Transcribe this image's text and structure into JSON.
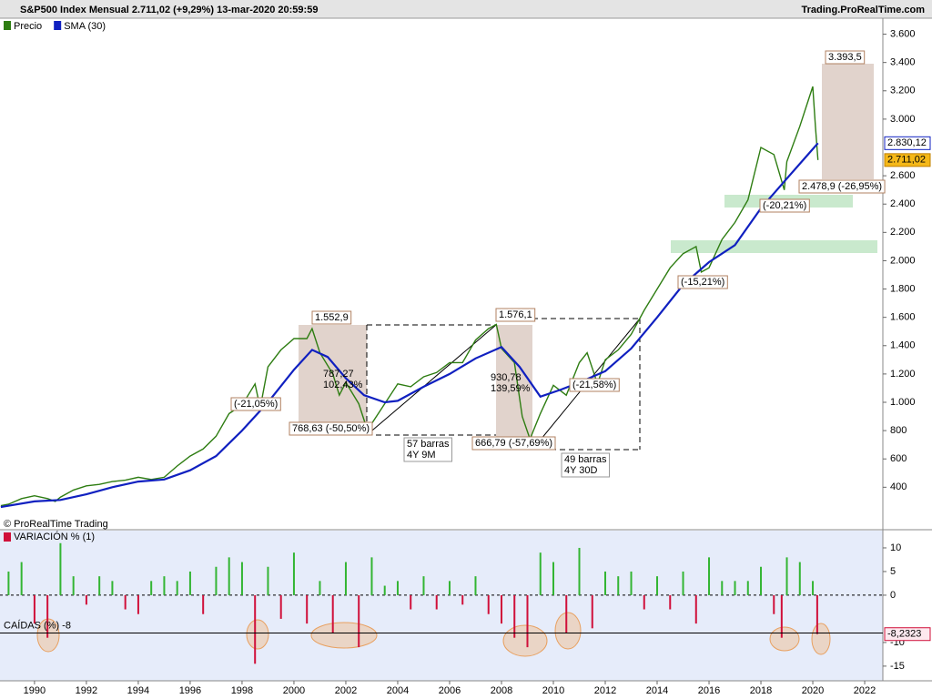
{
  "header": {
    "title": "S&P500 Index Mensual 2.711,02 (+9,29%) 13-mar-2020 20:59:59",
    "source": "Trading.ProRealTime.com",
    "copyright": "© ProRealTime Trading"
  },
  "chart_data": [
    {
      "type": "line",
      "xlim": [
        1988.67,
        2022.7
      ],
      "ylim": [
        100,
        3700
      ],
      "yticks": [
        {
          "value": 400,
          "label": "400"
        },
        600,
        800,
        {
          "value": 1000,
          "label": "1.000"
        },
        {
          "value": 1200,
          "label": "1.200"
        },
        {
          "value": 1400,
          "label": "1.400"
        },
        {
          "value": 1600,
          "label": "1.600"
        },
        {
          "value": 1800,
          "label": "1.800"
        },
        {
          "value": 2000,
          "label": "2.000"
        },
        {
          "value": 2200,
          "label": "2.200"
        },
        {
          "value": 2400,
          "label": "2.400"
        },
        {
          "value": 2600,
          "label": "2.600"
        },
        {
          "value": 3000,
          "label": "3.000"
        },
        {
          "value": 3200,
          "label": "3.200"
        },
        {
          "value": 3400,
          "label": "3.400"
        },
        {
          "value": 3600,
          "label": "3.600"
        }
      ],
      "series": [
        {
          "name": "Precio",
          "color": "#2e7d12",
          "last_label": "2.711,02",
          "x": [
            1988.7,
            1989,
            1989.5,
            1990,
            1990.5,
            1990.8,
            1991,
            1991.5,
            1992,
            1992.5,
            1993,
            1993.5,
            1994,
            1994.5,
            1995,
            1995.5,
            1996,
            1996.5,
            1997,
            1997.5,
            1998,
            1998.5,
            1998.7,
            1999,
            1999.5,
            2000,
            2000.5,
            2000.7,
            2001,
            2001.5,
            2001.75,
            2002,
            2002.5,
            2002.8,
            2003,
            2003.5,
            2004,
            2004.5,
            2005,
            2005.5,
            2006,
            2006.5,
            2007,
            2007.5,
            2007.8,
            2008,
            2008.5,
            2008.8,
            2009.1,
            2009.5,
            2010,
            2010.5,
            2011,
            2011.3,
            2011.7,
            2012,
            2012.5,
            2013,
            2013.5,
            2014,
            2014.5,
            2015,
            2015.5,
            2015.7,
            2016,
            2016.5,
            2017,
            2017.5,
            2018,
            2018.5,
            2018.9,
            2019,
            2019.5,
            2020,
            2020.1,
            2020.2
          ],
          "values": [
            270,
            280,
            320,
            340,
            320,
            300,
            330,
            380,
            410,
            420,
            440,
            450,
            470,
            455,
            470,
            550,
            620,
            670,
            760,
            920,
            980,
            1130,
            960,
            1250,
            1370,
            1450,
            1450,
            1520,
            1350,
            1200,
            1050,
            1140,
            990,
            820,
            850,
            990,
            1130,
            1110,
            1180,
            1210,
            1280,
            1280,
            1440,
            1520,
            1550,
            1380,
            1280,
            900,
            740,
            920,
            1120,
            1050,
            1280,
            1350,
            1130,
            1300,
            1370,
            1480,
            1650,
            1800,
            1950,
            2050,
            2100,
            1920,
            1950,
            2150,
            2270,
            2430,
            2800,
            2750,
            2500,
            2700,
            2950,
            3230,
            2950,
            2711.02
          ]
        },
        {
          "name": "SMA (30)",
          "color": "#1020c0",
          "last_label": "2.830,12",
          "x": [
            1988.7,
            1990,
            1991,
            1992,
            1993,
            1994,
            1995,
            1996,
            1997,
            1998,
            1999,
            2000,
            2000.7,
            2001.3,
            2002,
            2002.7,
            2003.5,
            2004,
            2005,
            2006,
            2007,
            2008,
            2008.7,
            2009.5,
            2010.3,
            2011,
            2012,
            2013,
            2014,
            2015,
            2016,
            2017,
            2018,
            2019,
            2020.2
          ],
          "values": [
            260,
            300,
            310,
            350,
            400,
            440,
            455,
            520,
            620,
            800,
            1000,
            1230,
            1370,
            1320,
            1170,
            1050,
            1000,
            1010,
            1110,
            1200,
            1310,
            1390,
            1250,
            1040,
            1090,
            1140,
            1220,
            1380,
            1600,
            1830,
            1990,
            2110,
            2370,
            2580,
            2830.12
          ]
        }
      ],
      "annotations": [
        {
          "lines": [
            "3.393,5"
          ]
        },
        {
          "lines": [
            "2.478,9 (-26,95%)"
          ]
        },
        {
          "lines": [
            "(-20,21%)"
          ]
        },
        {
          "lines": [
            "(-15,21%)"
          ]
        },
        {
          "lines": [
            "1.552,9"
          ]
        },
        {
          "lines": [
            "787,27",
            "102,43%"
          ]
        },
        {
          "lines": [
            "768,63 (-50,50%)"
          ]
        },
        {
          "lines": [
            "(-21,05%)"
          ]
        },
        {
          "lines": [
            "57 barras",
            "4Y 9M"
          ]
        },
        {
          "lines": [
            "1.576,1"
          ]
        },
        {
          "lines": [
            "930,78",
            "139,59%"
          ]
        },
        {
          "lines": [
            "666,79 (-57,69%)"
          ]
        },
        {
          "lines": [
            "(-21,58%)"
          ]
        },
        {
          "lines": [
            "49 barras",
            "4Y 30D"
          ]
        }
      ]
    },
    {
      "type": "bar",
      "title": "VARIACIÓN % (1)",
      "xlim": [
        1988.67,
        2022.7
      ],
      "ylim": [
        -18.1,
        13.65
      ],
      "yticks": [
        -15,
        -10,
        0,
        5,
        10
      ],
      "xticks": [
        1990,
        1992,
        1994,
        1996,
        1998,
        2000,
        2002,
        2004,
        2006,
        2008,
        2010,
        2012,
        2014,
        2016,
        2018,
        2020,
        2022
      ],
      "up_color": "#33b533",
      "down_color": "#d0103a",
      "last_label": "-8,2323",
      "threshold": {
        "value": -8,
        "label": "CAÍDAS (%) -8"
      },
      "x": [
        1989,
        1989.5,
        1990,
        1990.5,
        1991,
        1991.5,
        1992,
        1992.5,
        1993,
        1993.5,
        1994,
        1994.5,
        1995,
        1995.5,
        1996,
        1996.5,
        1997,
        1997.5,
        1998,
        1998.5,
        1999,
        1999.5,
        2000,
        2000.5,
        2001,
        2001.5,
        2002,
        2002.5,
        2003,
        2003.5,
        2004,
        2004.5,
        2005,
        2005.5,
        2006,
        2006.5,
        2007,
        2007.5,
        2008,
        2008.5,
        2009,
        2009.5,
        2010,
        2010.5,
        2011,
        2011.5,
        2012,
        2012.5,
        2013,
        2013.5,
        2014,
        2014.5,
        2015,
        2015.5,
        2016,
        2016.5,
        2017,
        2017.5,
        2018,
        2018.5,
        2018.8,
        2019,
        2019.5,
        2020,
        2020.17
      ],
      "values": [
        5,
        7,
        -6,
        -9,
        11,
        4,
        -2,
        4,
        3,
        -3,
        -4,
        3,
        4,
        3,
        5,
        -4,
        6,
        8,
        7,
        -14.5,
        6,
        -5,
        9,
        -6,
        3,
        -8,
        7,
        -11,
        8,
        2,
        3,
        -3,
        4,
        -3,
        3,
        -2,
        4,
        -4,
        -6,
        -9,
        -11,
        9,
        7,
        -8,
        10,
        -7,
        5,
        4,
        5,
        -3,
        4,
        -3,
        5,
        -6,
        8,
        3,
        3,
        3,
        6,
        -4,
        -9,
        8,
        7,
        3,
        -8.2323
      ]
    }
  ]
}
